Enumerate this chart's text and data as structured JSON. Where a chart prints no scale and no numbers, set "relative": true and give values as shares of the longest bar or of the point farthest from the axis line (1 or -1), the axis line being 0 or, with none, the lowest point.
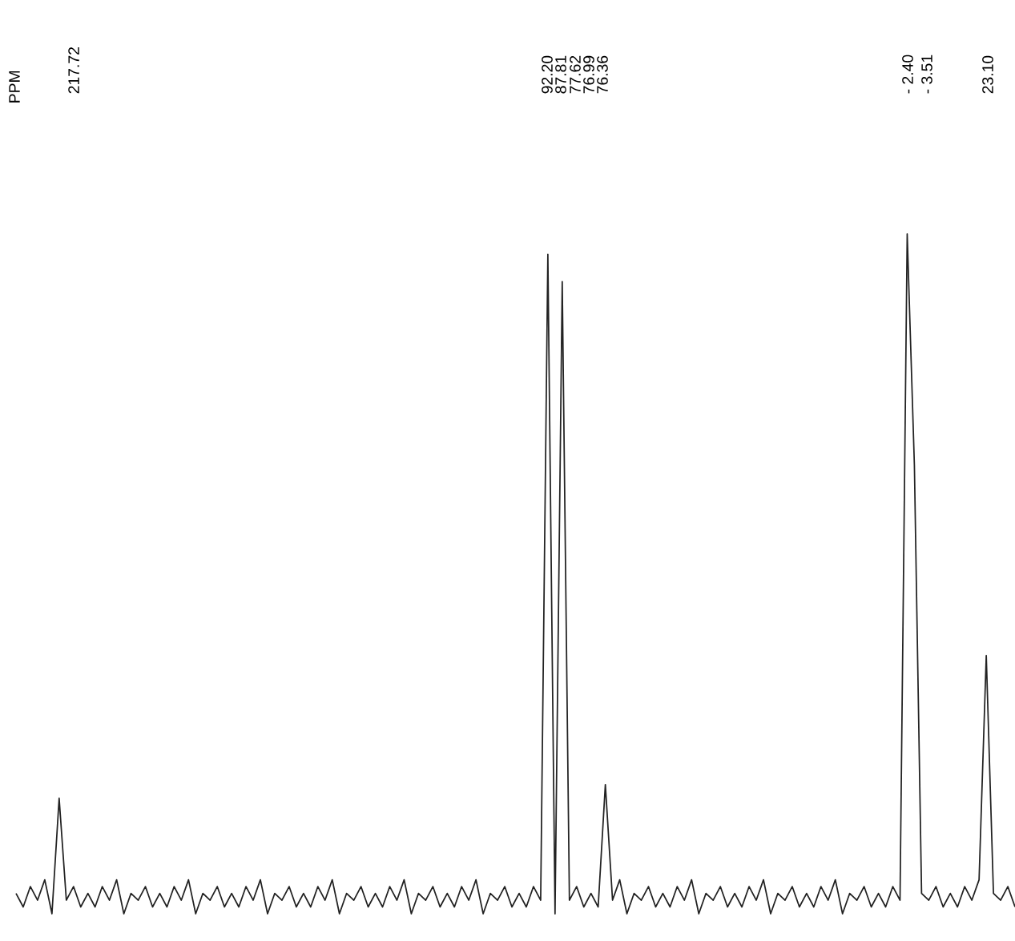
{
  "chart_data": {
    "type": "line",
    "relative": true,
    "color": "#222222",
    "categories": [
      null,
      null,
      null,
      null,
      null,
      null,
      null,
      null,
      null,
      null,
      null,
      null,
      null,
      null,
      null,
      null,
      null,
      null,
      null,
      null,
      null,
      null,
      null,
      null,
      null,
      null,
      null,
      null,
      null,
      null,
      null,
      null,
      null,
      null,
      null,
      null,
      null,
      null,
      null,
      null,
      null,
      null,
      null,
      null,
      null,
      null,
      null,
      null,
      null,
      null,
      null,
      null,
      null,
      null,
      null,
      null,
      null,
      null,
      null,
      null,
      null,
      null,
      null,
      null,
      null,
      null,
      null,
      null,
      null,
      null,
      null,
      null,
      null,
      null,
      null,
      null,
      null,
      null,
      null,
      null,
      null,
      null,
      null,
      null,
      null,
      null,
      null,
      null,
      null,
      null,
      null,
      null,
      null,
      null,
      null,
      null,
      null,
      null,
      null,
      null,
      null,
      null,
      null,
      null,
      null,
      null,
      null,
      null,
      null,
      null,
      null,
      null,
      null,
      null,
      null,
      null,
      null,
      null,
      null,
      null,
      null,
      null,
      null,
      null,
      null,
      null,
      null,
      null,
      null,
      null,
      null,
      null,
      null,
      null,
      null,
      null,
      null,
      null,
      null,
      null
    ],
    "values": [
      0.03,
      0.01,
      0.04,
      0.02,
      0.05,
      0.0,
      0.17,
      0.02,
      0.04,
      0.01,
      0.03,
      0.01,
      0.04,
      0.02,
      0.05,
      0.0,
      0.03,
      0.02,
      0.04,
      0.01,
      0.03,
      0.01,
      0.04,
      0.02,
      0.05,
      0.0,
      0.03,
      0.02,
      0.04,
      0.01,
      0.03,
      0.01,
      0.04,
      0.02,
      0.05,
      0.0,
      0.03,
      0.02,
      0.04,
      0.01,
      0.03,
      0.01,
      0.04,
      0.02,
      0.05,
      0.0,
      0.03,
      0.02,
      0.04,
      0.01,
      0.03,
      0.01,
      0.04,
      0.02,
      0.05,
      0.0,
      0.03,
      0.02,
      0.04,
      0.01,
      0.03,
      0.01,
      0.04,
      0.02,
      0.05,
      0.0,
      0.03,
      0.02,
      0.04,
      0.01,
      0.03,
      0.01,
      0.04,
      0.02,
      0.97,
      0.0,
      0.93,
      0.02,
      0.04,
      0.01,
      0.03,
      0.01,
      0.19,
      0.02,
      0.05,
      0.0,
      0.03,
      0.02,
      0.04,
      0.01,
      0.03,
      0.01,
      0.04,
      0.02,
      0.05,
      0.0,
      0.03,
      0.02,
      0.04,
      0.01,
      0.03,
      0.01,
      0.04,
      0.02,
      0.05,
      0.0,
      0.03,
      0.02,
      0.04,
      0.01,
      0.03,
      0.01,
      0.04,
      0.02,
      0.05,
      0.0,
      0.03,
      0.02,
      0.04,
      0.01,
      0.03,
      0.01,
      0.04,
      0.02,
      1.0,
      0.66,
      0.03,
      0.02,
      0.04,
      0.01,
      0.03,
      0.01,
      0.04,
      0.02,
      0.05,
      0.38,
      0.03,
      0.02,
      0.04,
      0.01
    ],
    "annotations": [
      "PPM",
      "217.72",
      "92.20",
      "87.81",
      "77.62",
      "76.99",
      "76.36",
      "- 2.40",
      "- 3.51",
      "23.10"
    ]
  }
}
